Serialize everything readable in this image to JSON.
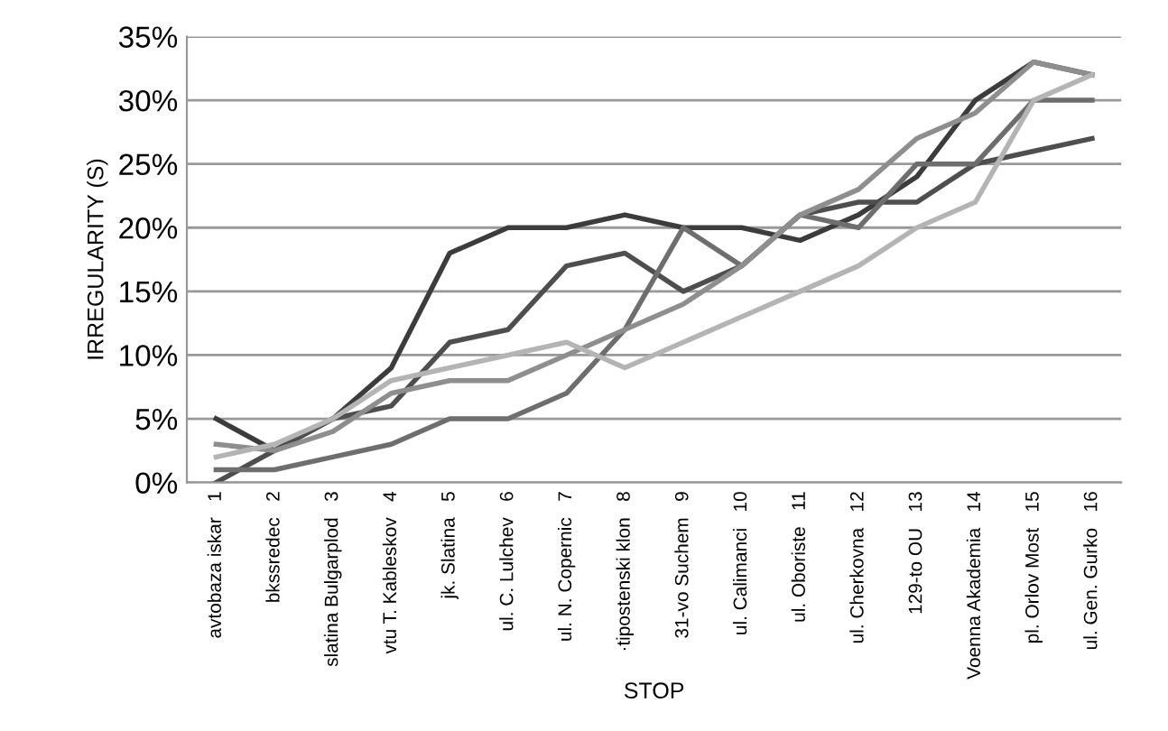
{
  "chart_data": {
    "type": "line",
    "xlabel": "STOP",
    "ylabel": "IRREGULARITY (S)",
    "categories": [
      "avtobaza iskar   1",
      "bkssredec   2",
      "slatina Bulgarplod   3",
      "vtu T. Kableskov   4",
      "jk. Slatina   5",
      "ul. C. Lulchev   6",
      "ul. N. Copernic   7",
      "·tipostenski klon   8",
      "31-vo Suchem   9",
      "ul. Calimanci   10",
      "ul. Oboriste   11",
      "ul. Cherkovna   12",
      "129-to OU   13",
      "Voenna Akademia   14",
      "pl. Orlov Most   15",
      "ul. Gen. Gurko   16"
    ],
    "series": [
      {
        "color": "#3c3c3c",
        "values": [
          5,
          2.5,
          5,
          9,
          18,
          20,
          20,
          21,
          20,
          20,
          19,
          21,
          24,
          30,
          33,
          32
        ]
      },
      {
        "color": "#4e4e4e",
        "values": [
          0,
          2.5,
          5,
          6,
          11,
          12,
          17,
          18,
          15,
          17,
          21,
          22,
          22,
          25,
          26,
          27
        ]
      },
      {
        "color": "#6e6e6e",
        "values": [
          1,
          1,
          2,
          3,
          5,
          5,
          7,
          12,
          20,
          17,
          21,
          20,
          25,
          25,
          30,
          30
        ]
      },
      {
        "color": "#8e8e8e",
        "values": [
          3,
          2.5,
          4,
          7,
          8,
          8,
          10,
          12,
          14,
          17,
          21,
          23,
          27,
          29,
          33,
          32
        ]
      },
      {
        "color": "#b4b4b4",
        "values": [
          2,
          3,
          5,
          8,
          9,
          10,
          11,
          9,
          11,
          13,
          15,
          17,
          20,
          22,
          30,
          32
        ]
      }
    ],
    "ylim": [
      0,
      35
    ],
    "yticks": [
      {
        "value": 0,
        "label": "0%"
      },
      {
        "value": 5,
        "label": "5%"
      },
      {
        "value": 10,
        "label": "10%"
      },
      {
        "value": 15,
        "label": "15%"
      },
      {
        "value": 20,
        "label": "20%"
      },
      {
        "value": 25,
        "label": "25%"
      },
      {
        "value": 30,
        "label": "30%"
      },
      {
        "value": 35,
        "label": "35%"
      }
    ],
    "grid": "y",
    "line_style": "solid"
  }
}
